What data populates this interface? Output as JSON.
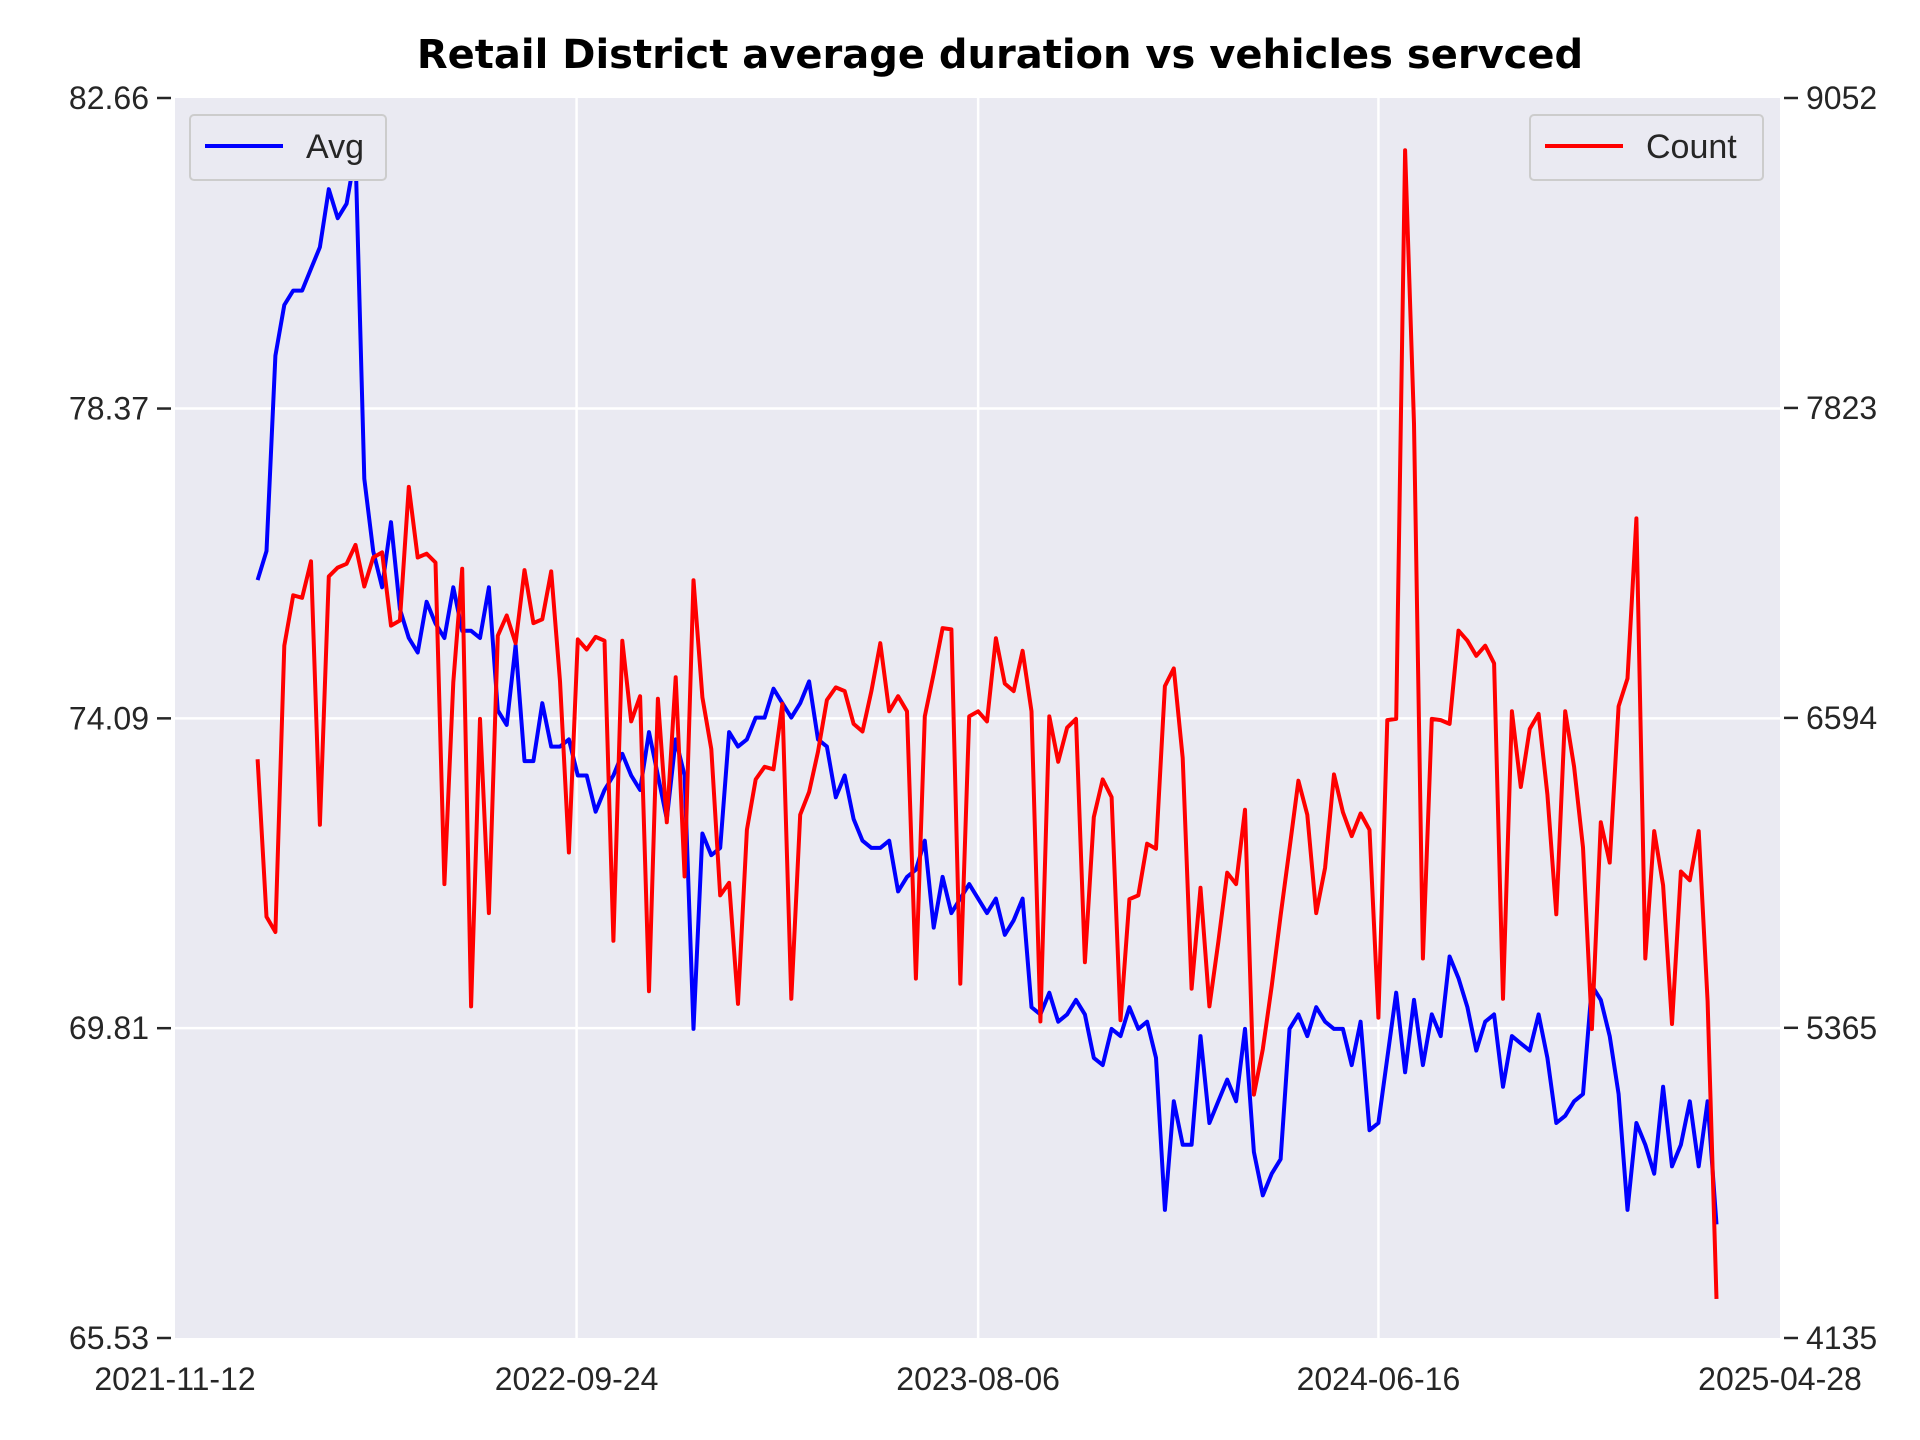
{
  "chart_data": {
    "type": "line",
    "title": "Retail District average duration vs vehicles servced",
    "xlabel": "",
    "ylabel": "",
    "y2label": "",
    "grid": true,
    "colors": {
      "background": "#eaeaf2",
      "grid": "#ffffff",
      "avg": "#0000ff",
      "count": "#ff0000"
    },
    "x_ticks": [
      "2021-11-12",
      "2022-09-24",
      "2023-08-06",
      "2024-06-16",
      "2025-04-28"
    ],
    "x_range": [
      "2021-11-12",
      "2025-04-28"
    ],
    "x_start": "2022-01-16",
    "x_step_days": 7,
    "y_left_ticks": [
      "65.53",
      "69.81",
      "74.09",
      "78.37",
      "82.66"
    ],
    "y_left_range": [
      65.53,
      82.66
    ],
    "y_right_ticks": [
      "4135",
      "5365",
      "6594",
      "7823",
      "9052"
    ],
    "y_right_range": [
      4135,
      9052
    ],
    "legend_left": {
      "label": "Avg",
      "position": "upper-left"
    },
    "legend_right": {
      "label": "Count",
      "position": "upper-right"
    },
    "series": [
      {
        "name": "Avg",
        "axis": "left",
        "values": [
          76.0,
          76.4,
          79.1,
          79.8,
          80.0,
          80.0,
          80.3,
          80.6,
          81.4,
          81.0,
          81.2,
          81.9,
          77.4,
          76.4,
          75.9,
          76.8,
          75.6,
          75.2,
          75.0,
          75.7,
          75.4,
          75.2,
          75.9,
          75.3,
          75.3,
          75.2,
          75.9,
          74.2,
          74.0,
          75.1,
          73.5,
          73.5,
          74.3,
          73.7,
          73.7,
          73.8,
          73.3,
          73.3,
          72.8,
          73.1,
          73.3,
          73.6,
          73.3,
          73.1,
          73.9,
          73.3,
          72.7,
          73.8,
          73.3,
          69.8,
          72.5,
          72.2,
          72.3,
          73.9,
          73.7,
          73.8,
          74.1,
          74.1,
          74.5,
          74.3,
          74.1,
          74.3,
          74.6,
          73.8,
          73.7,
          73.0,
          73.3,
          72.7,
          72.4,
          72.3,
          72.3,
          72.4,
          71.7,
          71.9,
          72.0,
          72.4,
          71.2,
          71.9,
          71.4,
          71.6,
          71.8,
          71.6,
          71.4,
          71.6,
          71.1,
          71.3,
          71.6,
          70.1,
          70.0,
          70.3,
          69.9,
          70.0,
          70.2,
          70.0,
          69.4,
          69.3,
          69.8,
          69.7,
          70.1,
          69.8,
          69.9,
          69.4,
          67.3,
          68.8,
          68.2,
          68.2,
          69.7,
          68.5,
          68.8,
          69.1,
          68.8,
          69.8,
          68.1,
          67.5,
          67.8,
          68.0,
          69.8,
          70.0,
          69.7,
          70.1,
          69.9,
          69.8,
          69.8,
          69.3,
          69.9,
          68.4,
          68.5,
          69.4,
          70.3,
          69.2,
          70.2,
          69.3,
          70.0,
          69.7,
          70.8,
          70.5,
          70.1,
          69.5,
          69.9,
          70.0,
          69.0,
          69.7,
          69.6,
          69.5,
          70.0,
          69.4,
          68.5,
          68.6,
          68.8,
          68.9,
          70.4,
          70.2,
          69.7,
          68.9,
          67.3,
          68.5,
          68.2,
          67.8,
          69.0,
          67.9,
          68.2,
          68.8,
          67.9,
          68.8,
          67.1
        ]
      },
      {
        "name": "Count",
        "axis": "right",
        "values": [
          6430,
          5805,
          5745,
          6880,
          7080,
          7070,
          7215,
          6170,
          7155,
          7190,
          7205,
          7280,
          7115,
          7230,
          7250,
          6960,
          6980,
          7510,
          7230,
          7245,
          7210,
          5935,
          6735,
          7185,
          5450,
          6590,
          5820,
          6920,
          7000,
          6890,
          7180,
          6970,
          6985,
          7175,
          6740,
          6060,
          6905,
          6865,
          6915,
          6900,
          5710,
          6900,
          6580,
          6680,
          5510,
          6670,
          6180,
          6755,
          5965,
          7140,
          6675,
          6470,
          5890,
          5940,
          5460,
          6150,
          6350,
          6400,
          6390,
          6650,
          5480,
          6210,
          6300,
          6460,
          6665,
          6715,
          6700,
          6570,
          6540,
          6700,
          6890,
          6620,
          6680,
          6620,
          5560,
          6600,
          6770,
          6950,
          6945,
          5540,
          6600,
          6620,
          6580,
          6910,
          6730,
          6700,
          6860,
          6620,
          5390,
          6600,
          6420,
          6555,
          6590,
          5625,
          6200,
          6350,
          6280,
          5395,
          5875,
          5890,
          6095,
          6075,
          6720,
          6790,
          6435,
          5520,
          5920,
          5450,
          5705,
          5980,
          5935,
          6230,
          5100,
          5280,
          5530,
          5810,
          6075,
          6345,
          6210,
          5820,
          6000,
          6370,
          6220,
          6125,
          6215,
          6150,
          5405,
          6585,
          6590,
          8845,
          7760,
          5640,
          6590,
          6585,
          6570,
          6940,
          6900,
          6840,
          6880,
          6810,
          5480,
          6620,
          6320,
          6550,
          6610,
          6290,
          5815,
          6620,
          6400,
          6080,
          5360,
          6180,
          6020,
          6640,
          6750,
          7385,
          5640,
          6145,
          5930,
          5380,
          5985,
          5950,
          6145,
          5470,
          4290
        ]
      }
    ]
  }
}
